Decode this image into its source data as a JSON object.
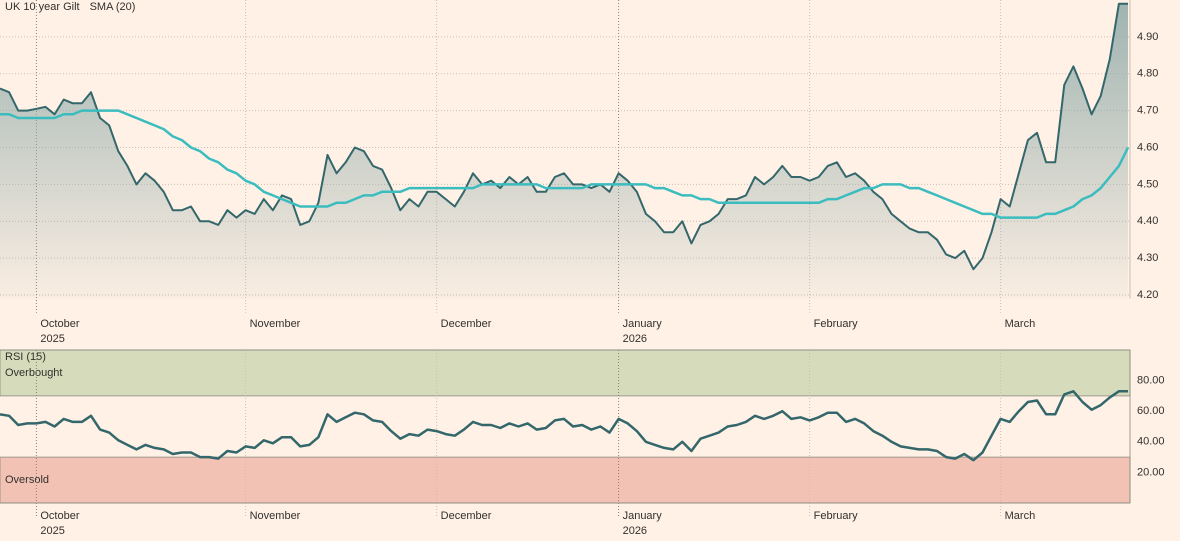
{
  "chart_data": [
    {
      "type": "line",
      "xlim": [
        0,
        124
      ],
      "ylim": [
        4.19,
        5.0
      ],
      "yticks": [
        {
          "value": 4.2,
          "label": "4.20"
        },
        {
          "value": 4.3,
          "label": "4.30"
        },
        {
          "value": 4.4,
          "label": "4.40"
        },
        {
          "value": 4.5,
          "label": "4.50"
        },
        {
          "value": 4.6,
          "label": "4.60"
        },
        {
          "value": 4.7,
          "label": "4.70"
        },
        {
          "value": 4.8,
          "label": "4.80"
        },
        {
          "value": 4.9,
          "label": "4.90"
        }
      ],
      "xticks": [
        {
          "value": 4,
          "label": "October",
          "year": "2025"
        },
        {
          "value": 27,
          "label": "November"
        },
        {
          "value": 48,
          "label": "December"
        },
        {
          "value": 68,
          "label": "January",
          "year": "2026"
        },
        {
          "value": 89,
          "label": "February"
        },
        {
          "value": 110,
          "label": "March"
        }
      ],
      "grid": true,
      "series": [
        {
          "name": "UK 10 year Gilt",
          "color": "#33676b",
          "area": true,
          "values": [
            4.76,
            4.75,
            4.7,
            4.7,
            4.705,
            4.71,
            4.69,
            4.73,
            4.72,
            4.72,
            4.75,
            4.68,
            4.66,
            4.59,
            4.55,
            4.5,
            4.53,
            4.51,
            4.48,
            4.43,
            4.43,
            4.44,
            4.4,
            4.4,
            4.39,
            4.43,
            4.41,
            4.43,
            4.42,
            4.46,
            4.43,
            4.47,
            4.46,
            4.39,
            4.4,
            4.45,
            4.58,
            4.53,
            4.56,
            4.6,
            4.59,
            4.55,
            4.54,
            4.49,
            4.43,
            4.46,
            4.44,
            4.48,
            4.48,
            4.46,
            4.44,
            4.48,
            4.53,
            4.5,
            4.51,
            4.49,
            4.52,
            4.5,
            4.52,
            4.48,
            4.48,
            4.52,
            4.53,
            4.5,
            4.5,
            4.49,
            4.5,
            4.48,
            4.53,
            4.51,
            4.48,
            4.42,
            4.4,
            4.37,
            4.37,
            4.4,
            4.34,
            4.39,
            4.4,
            4.42,
            4.46,
            4.46,
            4.47,
            4.52,
            4.5,
            4.52,
            4.55,
            4.52,
            4.52,
            4.51,
            4.52,
            4.55,
            4.56,
            4.52,
            4.53,
            4.51,
            4.48,
            4.46,
            4.42,
            4.4,
            4.38,
            4.37,
            4.37,
            4.35,
            4.31,
            4.3,
            4.32,
            4.27,
            4.3,
            4.37,
            4.46,
            4.44,
            4.53,
            4.62,
            4.64,
            4.56,
            4.56,
            4.77,
            4.82,
            4.76,
            4.69,
            4.74,
            4.84,
            4.99,
            4.99
          ]
        },
        {
          "name": "SMA (20)",
          "color": "#3bbcbf",
          "values": [
            4.69,
            4.69,
            4.68,
            4.68,
            4.68,
            4.68,
            4.68,
            4.69,
            4.69,
            4.7,
            4.7,
            4.7,
            4.7,
            4.7,
            4.69,
            4.68,
            4.67,
            4.66,
            4.65,
            4.63,
            4.62,
            4.6,
            4.59,
            4.57,
            4.56,
            4.54,
            4.53,
            4.51,
            4.5,
            4.48,
            4.47,
            4.46,
            4.45,
            4.44,
            4.44,
            4.44,
            4.44,
            4.45,
            4.45,
            4.46,
            4.47,
            4.47,
            4.48,
            4.48,
            4.48,
            4.49,
            4.49,
            4.49,
            4.49,
            4.49,
            4.49,
            4.49,
            4.49,
            4.5,
            4.5,
            4.5,
            4.5,
            4.5,
            4.5,
            4.5,
            4.49,
            4.49,
            4.49,
            4.49,
            4.49,
            4.5,
            4.5,
            4.5,
            4.5,
            4.5,
            4.5,
            4.5,
            4.49,
            4.49,
            4.48,
            4.47,
            4.47,
            4.46,
            4.46,
            4.45,
            4.45,
            4.45,
            4.45,
            4.45,
            4.45,
            4.45,
            4.45,
            4.45,
            4.45,
            4.45,
            4.45,
            4.46,
            4.46,
            4.47,
            4.48,
            4.49,
            4.49,
            4.5,
            4.5,
            4.5,
            4.49,
            4.49,
            4.48,
            4.47,
            4.46,
            4.45,
            4.44,
            4.43,
            4.42,
            4.42,
            4.41,
            4.41,
            4.41,
            4.41,
            4.41,
            4.42,
            4.42,
            4.43,
            4.44,
            4.46,
            4.47,
            4.49,
            4.52,
            4.55,
            4.6
          ]
        }
      ]
    },
    {
      "type": "line",
      "xlim": [
        0,
        124
      ],
      "ylim": [
        0,
        100
      ],
      "yticks": [
        {
          "value": 20,
          "label": "20.00"
        },
        {
          "value": 40,
          "label": "40.00"
        },
        {
          "value": 60,
          "label": "60.00"
        },
        {
          "value": 80,
          "label": "80.00"
        }
      ],
      "xticks": [
        {
          "value": 4,
          "label": "October",
          "year": "2025"
        },
        {
          "value": 27,
          "label": "November"
        },
        {
          "value": 48,
          "label": "December"
        },
        {
          "value": 68,
          "label": "January",
          "year": "2026"
        },
        {
          "value": 89,
          "label": "February"
        },
        {
          "value": 110,
          "label": "March"
        }
      ],
      "bands": [
        {
          "label": "Overbought",
          "from": 70,
          "to": 100,
          "color": "#d6dcbb"
        },
        {
          "label": "Oversold",
          "from": 0,
          "to": 30,
          "color": "#f2c2b5"
        }
      ],
      "series": [
        {
          "name": "RSI (15)",
          "color": "#33676b",
          "values": [
            58,
            57,
            51,
            52,
            52,
            53,
            50,
            55,
            53,
            53,
            57,
            48,
            46,
            41,
            38,
            35,
            38,
            36,
            35,
            32,
            33,
            33,
            30,
            30,
            29,
            34,
            33,
            37,
            36,
            41,
            39,
            43,
            43,
            37,
            38,
            43,
            58,
            53,
            56,
            59,
            58,
            54,
            53,
            47,
            42,
            45,
            44,
            48,
            47,
            45,
            44,
            48,
            53,
            51,
            51,
            49,
            52,
            50,
            52,
            48,
            49,
            54,
            55,
            50,
            51,
            48,
            50,
            46,
            55,
            52,
            47,
            40,
            38,
            36,
            35,
            40,
            34,
            42,
            44,
            46,
            50,
            51,
            53,
            57,
            55,
            57,
            60,
            55,
            56,
            54,
            56,
            59,
            59,
            53,
            55,
            52,
            47,
            44,
            40,
            37,
            36,
            35,
            35,
            34,
            30,
            29,
            32,
            28,
            33,
            44,
            55,
            53,
            60,
            66,
            67,
            58,
            58,
            71,
            73,
            66,
            61,
            64,
            69,
            73,
            73
          ]
        }
      ]
    }
  ]
}
